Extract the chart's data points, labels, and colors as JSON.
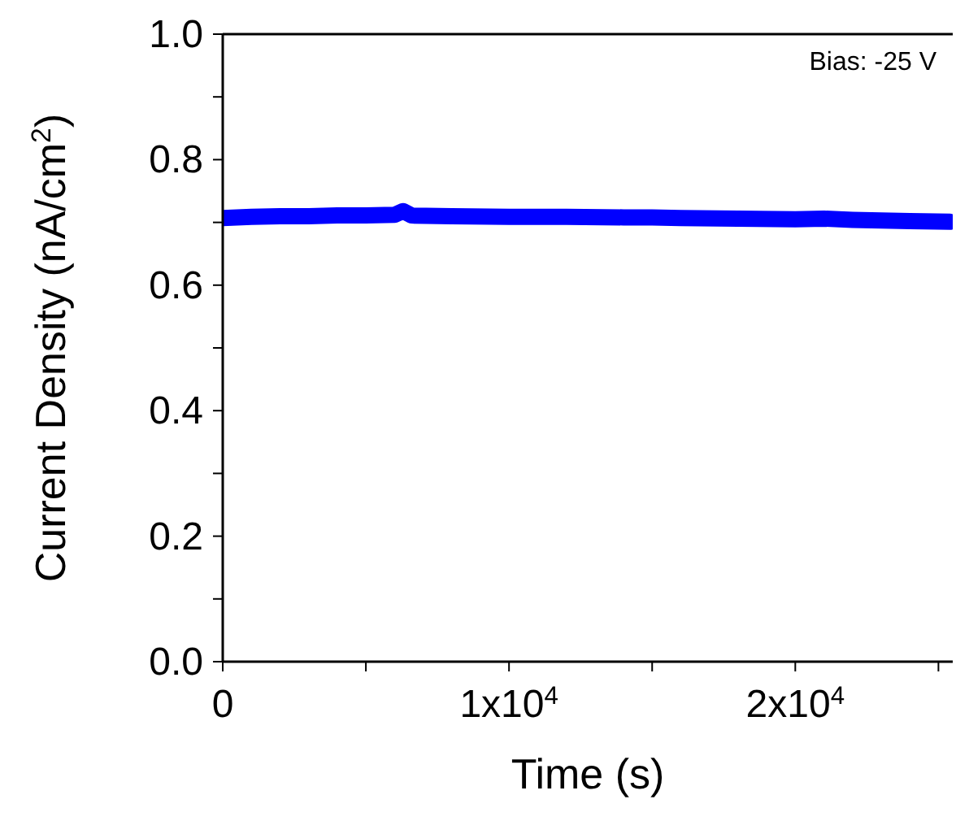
{
  "chart_data": {
    "type": "line",
    "xlabel": "Time (s)",
    "ylabel": "Current Density (nA/cm$^{2}$)",
    "annotations": [
      "Bias: -25 V"
    ],
    "x": [
      0,
      1000,
      2000,
      3000,
      4000,
      5000,
      6000,
      6300,
      6600,
      8000,
      10000,
      12000,
      14000,
      15000,
      16000,
      18000,
      20000,
      21000,
      22000,
      23000,
      24000,
      25400
    ],
    "series": [
      {
        "color": "#0000ff",
        "values": [
          0.707,
          0.709,
          0.71,
          0.71,
          0.711,
          0.711,
          0.712,
          0.718,
          0.711,
          0.71,
          0.709,
          0.709,
          0.708,
          0.708,
          0.707,
          0.706,
          0.705,
          0.706,
          0.704,
          0.703,
          0.702,
          0.701
        ]
      }
    ],
    "xlim": [
      0,
      25500
    ],
    "ylim": [
      0,
      1
    ],
    "xticks": [
      {
        "value": 0,
        "label": "0"
      },
      {
        "value": 5000,
        "label": null
      },
      {
        "value": 10000,
        "label": "1x10$^{4}$"
      },
      {
        "value": 15000,
        "label": null
      },
      {
        "value": 20000,
        "label": "2x10$^{4}$"
      },
      {
        "value": 25000,
        "label": null
      }
    ],
    "yticks": [
      {
        "value": 0,
        "label": "0.0"
      },
      {
        "value": 0.1,
        "label": null
      },
      {
        "value": 0.2,
        "label": "0.2"
      },
      {
        "value": 0.3,
        "label": null
      },
      {
        "value": 0.4,
        "label": "0.4"
      },
      {
        "value": 0.5,
        "label": null
      },
      {
        "value": 0.6,
        "label": "0.6"
      },
      {
        "value": 0.7,
        "label": null
      },
      {
        "value": 0.8,
        "label": "0.8"
      },
      {
        "value": 0.9,
        "label": null
      },
      {
        "value": 1,
        "label": "1.0"
      }
    ],
    "grid": false,
    "legend": false,
    "marker": "none",
    "line_style": "solid"
  }
}
